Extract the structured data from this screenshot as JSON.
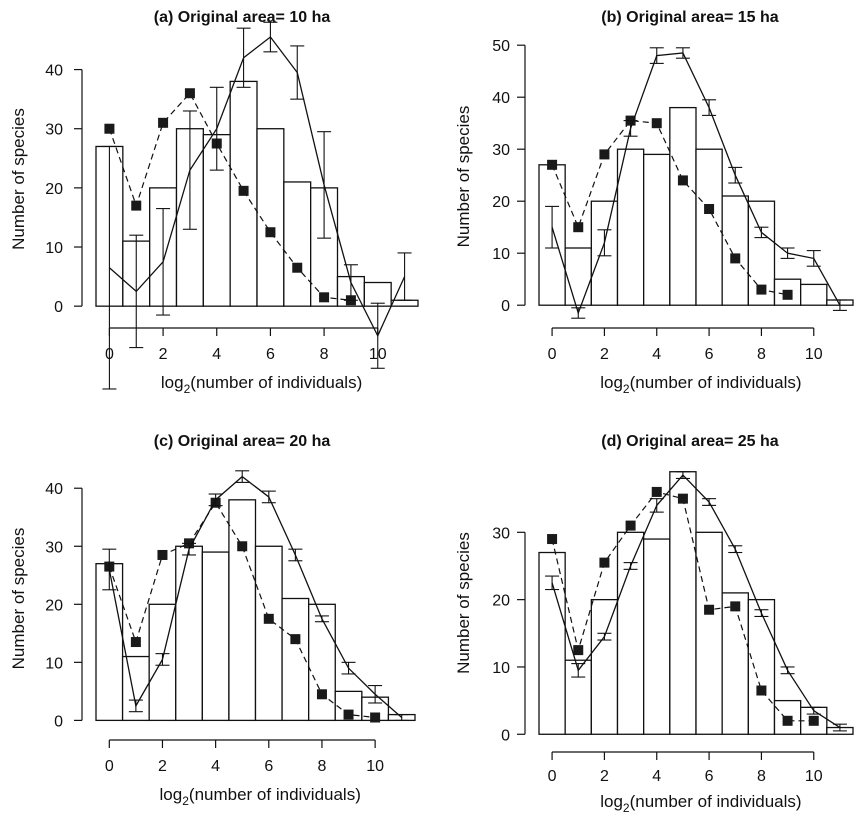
{
  "chart_data": [
    {
      "type": "bar",
      "title": "(a) Original area= 10 ha",
      "xlabel": {
        "prefix": "log",
        "sub": "2",
        "suffix": "(number of individuals)"
      },
      "ylabel": "Number of species",
      "xlim": [
        -0.5,
        11.5
      ],
      "ylim": [
        -2,
        45
      ],
      "xticks": [
        0,
        2,
        4,
        6,
        8,
        10
      ],
      "yticks": [
        0,
        10,
        20,
        30,
        40
      ],
      "bars": [
        27,
        11,
        20,
        30,
        29,
        38,
        30,
        21,
        20,
        5,
        4,
        1
      ],
      "series": [
        {
          "style": "dashed-square",
          "x": [
            0,
            1,
            2,
            3,
            4,
            5,
            6,
            7,
            8,
            9
          ],
          "y": [
            30,
            17,
            31,
            36,
            27.5,
            19.5,
            12.5,
            6.5,
            1.5,
            1
          ]
        },
        {
          "style": "solid-errorbar",
          "x": [
            0,
            1,
            2,
            3,
            4,
            5,
            6,
            7,
            8,
            9,
            10,
            11
          ],
          "y": [
            6.5,
            2.5,
            7.5,
            23,
            30,
            42,
            45.5,
            39.5,
            20.5,
            4,
            -5,
            5
          ],
          "err": [
            20.5,
            9.5,
            9,
            10,
            7,
            5,
            2.5,
            4.5,
            9,
            3,
            5.5,
            4
          ]
        }
      ]
    },
    {
      "type": "bar",
      "title": "(b) Original area= 15 ha",
      "xlabel": {
        "prefix": "log",
        "sub": "2",
        "suffix": "(number of individuals)"
      },
      "ylabel": "Number of species",
      "xlim": [
        -0.5,
        11.5
      ],
      "ylim": [
        -1.5,
        51
      ],
      "xticks": [
        0,
        2,
        4,
        6,
        8,
        10
      ],
      "yticks": [
        0,
        10,
        20,
        30,
        40,
        50
      ],
      "bars": [
        27,
        11,
        20,
        30,
        29,
        38,
        30,
        21,
        20,
        5,
        4,
        1
      ],
      "series": [
        {
          "style": "dashed-square",
          "x": [
            0,
            1,
            2,
            3,
            4,
            5,
            6,
            7,
            8,
            9
          ],
          "y": [
            27,
            15,
            29,
            35.5,
            35,
            24,
            18.5,
            9,
            3,
            2
          ]
        },
        {
          "style": "solid-errorbar",
          "x": [
            0,
            1,
            2,
            3,
            4,
            5,
            6,
            7,
            8,
            9,
            10,
            11
          ],
          "y": [
            15,
            -1.5,
            12,
            34,
            48,
            48.5,
            38,
            25,
            14,
            10,
            9,
            0
          ],
          "err": [
            4,
            1,
            2.5,
            1.5,
            1.5,
            1,
            1.5,
            1.5,
            1,
            1,
            1.5,
            1
          ]
        }
      ]
    },
    {
      "type": "bar",
      "title": "(c) Original area= 20 ha",
      "xlabel": {
        "prefix": "log",
        "sub": "2",
        "suffix": "(number of individuals)"
      },
      "ylabel": "Number of species",
      "xlim": [
        -0.5,
        11.5
      ],
      "ylim": [
        -2,
        44
      ],
      "xticks": [
        0,
        2,
        4,
        6,
        8,
        10
      ],
      "yticks": [
        0,
        10,
        20,
        30,
        40
      ],
      "bars": [
        27,
        11,
        20,
        30,
        29,
        38,
        30,
        21,
        20,
        5,
        4,
        1
      ],
      "series": [
        {
          "style": "dashed-square",
          "x": [
            0,
            1,
            2,
            3,
            4,
            5,
            6,
            7,
            8,
            9,
            10
          ],
          "y": [
            26.5,
            13.5,
            28.5,
            30.5,
            37.5,
            30,
            17.5,
            14,
            4.5,
            1,
            0.5
          ]
        },
        {
          "style": "solid-errorbar",
          "x": [
            0,
            1,
            2,
            3,
            4,
            5,
            6,
            7,
            8,
            9,
            10,
            11
          ],
          "y": [
            26,
            2.5,
            10.5,
            29.5,
            38,
            42,
            38.5,
            28.5,
            17.5,
            9,
            4.5,
            0.5
          ],
          "err": [
            3.5,
            1,
            1,
            1,
            1,
            1,
            1,
            1,
            0.5,
            1,
            1.5,
            0.5
          ]
        }
      ]
    },
    {
      "type": "bar",
      "title": "(d) Original area= 25 ha",
      "xlabel": {
        "prefix": "log",
        "sub": "2",
        "suffix": "(number of individuals)"
      },
      "ylabel": "Number of species",
      "xlim": [
        -0.5,
        11.5
      ],
      "ylim": [
        -1,
        40
      ],
      "xticks": [
        0,
        2,
        4,
        6,
        8,
        10
      ],
      "yticks": [
        0,
        10,
        20,
        30
      ],
      "bars": [
        27,
        11,
        20,
        30,
        29,
        39,
        30,
        21,
        20,
        5,
        4,
        1
      ],
      "series": [
        {
          "style": "dashed-square",
          "x": [
            0,
            1,
            2,
            3,
            4,
            5,
            6,
            7,
            8,
            9,
            10
          ],
          "y": [
            29,
            12.5,
            25.5,
            31,
            36,
            35,
            18.5,
            19,
            6.5,
            2,
            2
          ]
        },
        {
          "style": "solid-errorbar",
          "x": [
            0,
            1,
            2,
            3,
            4,
            5,
            6,
            7,
            8,
            9,
            10,
            11
          ],
          "y": [
            22.5,
            9.5,
            14.5,
            25,
            34,
            38.5,
            34.5,
            27.5,
            18,
            9.5,
            3.5,
            1
          ],
          "err": [
            1,
            1,
            0.5,
            0.5,
            1,
            0.5,
            0.5,
            0.5,
            0.5,
            0.5,
            0.5,
            0.5
          ]
        }
      ]
    }
  ]
}
